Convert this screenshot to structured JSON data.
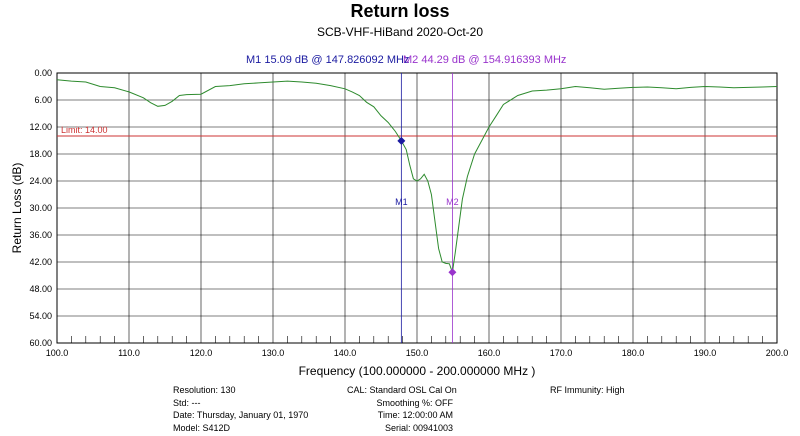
{
  "chart_data": {
    "type": "line",
    "title": "Return loss",
    "subtitle": "SCB-VHF-HiBand 2020-Oct-20",
    "xlabel": "Frequency (100.000000 - 200.000000 MHz )",
    "ylabel": "Return Loss (dB)",
    "xlim": [
      100,
      200
    ],
    "ylim": [
      0,
      60
    ],
    "y_inverted": true,
    "grid": true,
    "x_ticks": [
      "100.0",
      "110.0",
      "120.0",
      "130.0",
      "140.0",
      "150.0",
      "160.0",
      "170.0",
      "180.0",
      "190.0",
      "200.0"
    ],
    "y_ticks": [
      "0.00",
      "6.00",
      "12.00",
      "18.00",
      "24.00",
      "30.00",
      "36.00",
      "42.00",
      "48.00",
      "54.00",
      "60.00"
    ],
    "limit": {
      "label": "Limit: 14.00",
      "value": 14.0,
      "color": "#cc3333"
    },
    "markers": [
      {
        "name": "M1",
        "readout": "M1  15.09 dB @ 147.826092 MHz",
        "x": 147.826092,
        "y": 15.09,
        "color": "#1a1aa0"
      },
      {
        "name": "M2",
        "readout": "M2  44.29 dB @ 154.916393 MHz",
        "x": 154.916393,
        "y": 44.29,
        "color": "#9933cc"
      }
    ],
    "series": [
      {
        "color": "#2e8b2e",
        "x": [
          100,
          102,
          104,
          106,
          108,
          110,
          112,
          113,
          114,
          115,
          116,
          117,
          118,
          120,
          122,
          124,
          126,
          128,
          130,
          132,
          134,
          136,
          138,
          140,
          141,
          142,
          143,
          144,
          145,
          146,
          147,
          147.83,
          148.5,
          149,
          149.5,
          150,
          150.5,
          151,
          151.5,
          152,
          152.5,
          153,
          153.5,
          154,
          154.5,
          154.92,
          155.3,
          155.8,
          156.3,
          157,
          158,
          159,
          160,
          161,
          162,
          164,
          166,
          168,
          170,
          172,
          174,
          176,
          178,
          180,
          182,
          184,
          186,
          188,
          190,
          192,
          194,
          196,
          198,
          200
        ],
        "y": [
          1.5,
          1.8,
          2.0,
          3.0,
          3.3,
          4.2,
          5.5,
          6.6,
          7.4,
          7.2,
          6.3,
          5.0,
          4.8,
          4.7,
          3.0,
          2.8,
          2.4,
          2.2,
          2.0,
          1.8,
          2.0,
          2.3,
          2.8,
          3.5,
          4.2,
          5.0,
          6.5,
          7.5,
          9.5,
          11.0,
          13.0,
          15.09,
          17.0,
          20.5,
          23.5,
          24.0,
          23.5,
          22.5,
          24.0,
          27.0,
          33.0,
          39.0,
          42.0,
          42.3,
          42.4,
          44.29,
          40.0,
          34.0,
          28.0,
          23.0,
          18.0,
          15.0,
          12.0,
          9.5,
          7.0,
          5.0,
          4.0,
          3.8,
          3.5,
          3.0,
          3.3,
          3.6,
          3.4,
          3.2,
          3.1,
          3.3,
          3.5,
          3.2,
          3.0,
          3.1,
          3.3,
          3.2,
          3.1,
          3.0
        ]
      }
    ]
  },
  "footer": {
    "col1": [
      "Resolution: 130",
      "Std: ---",
      "Date: Thursday, January 01, 1970",
      "Model: S412D"
    ],
    "col2": [
      "CAL: Standard OSL Cal On",
      "Smoothing %:  OFF",
      "Time: 12:00:00 AM",
      "Serial: 00941003"
    ],
    "col3": [
      "RF Immunity: High"
    ]
  }
}
